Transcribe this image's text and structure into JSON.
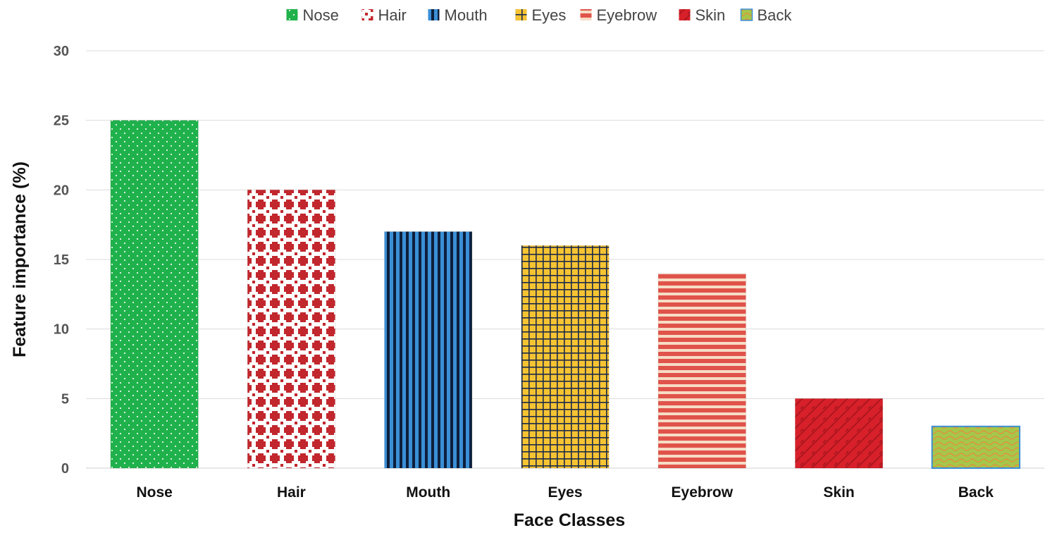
{
  "chart_data": {
    "type": "bar",
    "categories": [
      "Nose",
      "Hair",
      "Mouth",
      "Eyes",
      "Eyebrow",
      "Skin",
      "Back"
    ],
    "values": [
      25,
      20,
      17,
      16,
      14,
      5,
      3
    ],
    "xlabel": "Face Classes",
    "ylabel": "Feature importance (%)",
    "ylim": [
      0,
      30
    ],
    "yticks": [
      0,
      5,
      10,
      15,
      20,
      25,
      30
    ],
    "grid": true,
    "legend_position": "top-center",
    "legend": [
      "Nose",
      "Hair",
      "Mouth",
      "Eyes",
      "Eyebrow",
      "Skin",
      "Back"
    ],
    "colors": {
      "Nose": "#1fb14b",
      "Hair": "#c1272d",
      "Mouth": "#3b8fd6",
      "Eyes": "#f6c332",
      "Eyebrow": "#e0534a",
      "Skin": "#d7202a",
      "Back": "#a6c64a"
    }
  }
}
